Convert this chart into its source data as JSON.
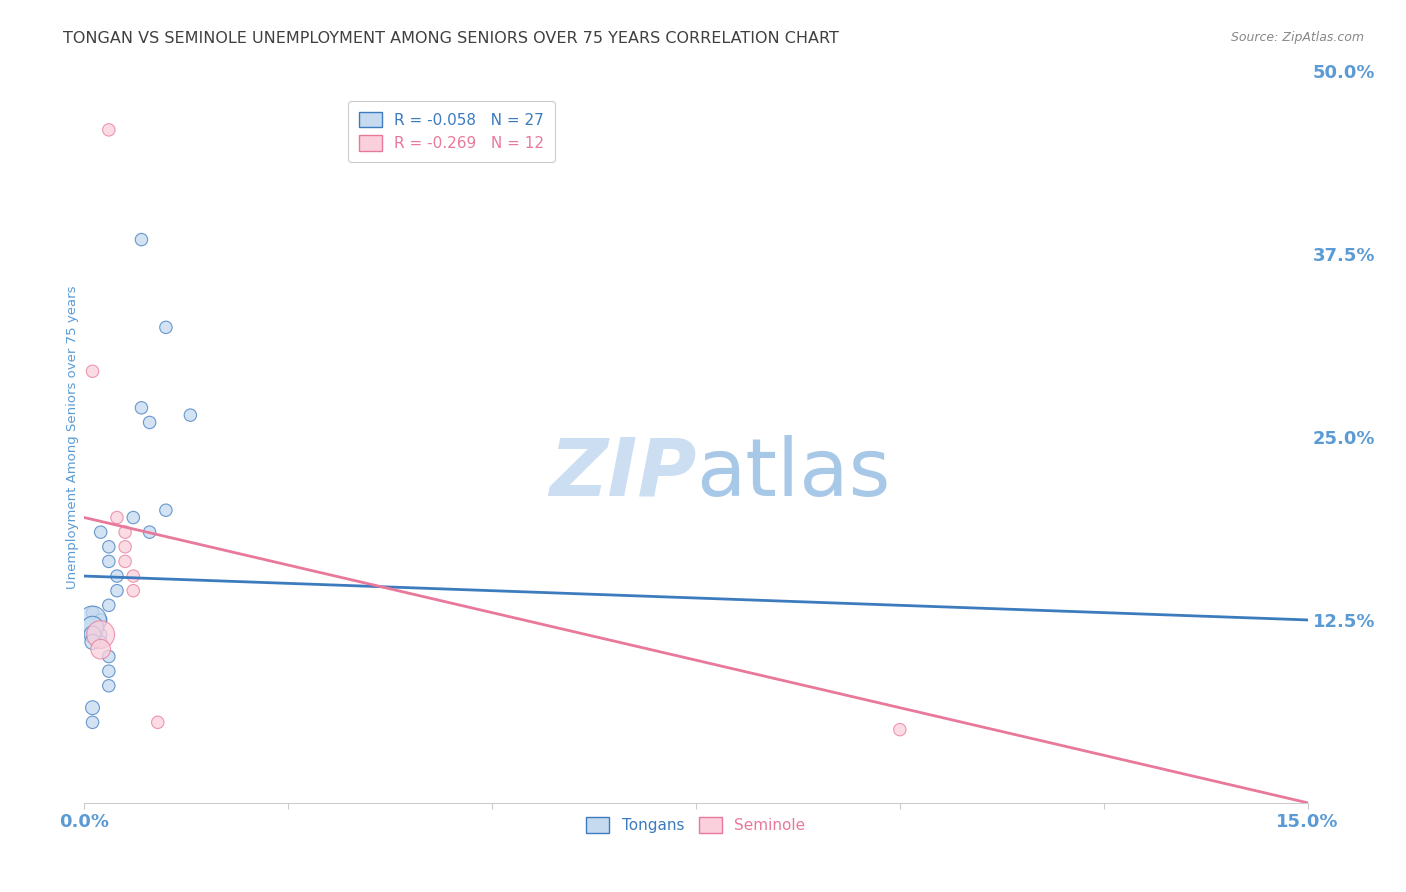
{
  "title": "TONGAN VS SEMINOLE UNEMPLOYMENT AMONG SENIORS OVER 75 YEARS CORRELATION CHART",
  "source": "Source: ZipAtlas.com",
  "ylabel": "Unemployment Among Seniors over 75 years",
  "xlim": [
    0.0,
    0.15
  ],
  "ylim": [
    0.0,
    0.5
  ],
  "watermark_zip": "ZIP",
  "watermark_atlas": "atlas",
  "legend_line1": "R = -0.058   N = 27",
  "legend_line2": "R = -0.269   N = 12",
  "tongans_x": [
    0.007,
    0.01,
    0.007,
    0.013,
    0.008,
    0.01,
    0.006,
    0.008,
    0.002,
    0.003,
    0.003,
    0.004,
    0.004,
    0.003,
    0.001,
    0.002,
    0.002,
    0.002,
    0.003,
    0.003,
    0.003,
    0.001,
    0.001,
    0.001,
    0.001,
    0.001,
    0.001
  ],
  "tongans_y": [
    0.385,
    0.325,
    0.27,
    0.265,
    0.26,
    0.2,
    0.195,
    0.185,
    0.185,
    0.175,
    0.165,
    0.155,
    0.145,
    0.135,
    0.13,
    0.125,
    0.115,
    0.11,
    0.1,
    0.09,
    0.08,
    0.125,
    0.12,
    0.115,
    0.11,
    0.065,
    0.055
  ],
  "tongans_size": [
    80,
    80,
    80,
    80,
    80,
    80,
    80,
    80,
    80,
    80,
    80,
    80,
    80,
    80,
    80,
    80,
    80,
    80,
    80,
    80,
    80,
    400,
    250,
    150,
    120,
    100,
    80
  ],
  "seminole_x": [
    0.003,
    0.001,
    0.004,
    0.005,
    0.005,
    0.005,
    0.006,
    0.006,
    0.002,
    0.002,
    0.009,
    0.1
  ],
  "seminole_y": [
    0.46,
    0.295,
    0.195,
    0.185,
    0.175,
    0.165,
    0.155,
    0.145,
    0.115,
    0.105,
    0.055,
    0.05
  ],
  "seminole_size": [
    80,
    80,
    80,
    80,
    80,
    80,
    80,
    80,
    400,
    200,
    80,
    80
  ],
  "tongan_line_x": [
    0.0,
    0.15
  ],
  "tongan_line_y": [
    0.155,
    0.125
  ],
  "seminole_line_x": [
    0.0,
    0.15
  ],
  "seminole_line_y": [
    0.195,
    0.0
  ],
  "tongan_color": "#3d7bbf",
  "seminole_color": "#e8799a",
  "tongan_fill": "#c5daef",
  "seminole_fill": "#fad0dc",
  "grid_color": "#cccccc",
  "bg_color": "#ffffff",
  "title_color": "#404040",
  "axis_color": "#5b9bd5",
  "title_fontsize": 11.5,
  "source_fontsize": 9,
  "watermark_fontsize_zip": 58,
  "watermark_fontsize_atlas": 58,
  "watermark_color_zip": "#ccdff2",
  "watermark_color_atlas": "#a8c8e8",
  "xtick_positions": [
    0.0,
    0.025,
    0.05,
    0.075,
    0.1,
    0.125,
    0.15
  ],
  "ytick_right_positions": [
    0.0,
    0.125,
    0.25,
    0.375,
    0.5
  ],
  "ytick_right_labels": [
    "",
    "12.5%",
    "25.0%",
    "37.5%",
    "50.0%"
  ]
}
